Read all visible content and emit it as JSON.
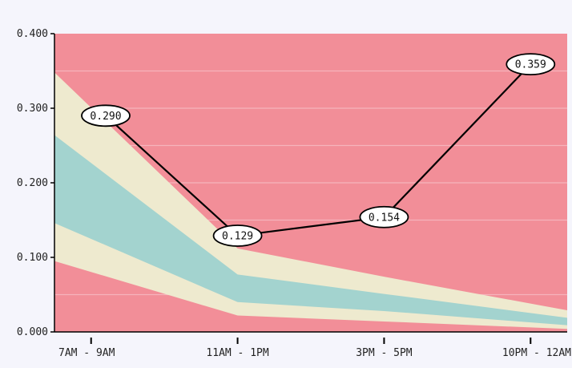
{
  "chart_data": {
    "type": "line",
    "title": "",
    "xlabel": "",
    "ylabel": "",
    "categories": [
      "7AM - 9AM",
      "11AM - 1PM",
      "3PM - 5PM",
      "10PM - 12AM"
    ],
    "x_positions": [
      0.1,
      1.0,
      2.0,
      3.0
    ],
    "ylim": [
      0,
      0.4
    ],
    "yticks": [
      0.0,
      0.1,
      0.2,
      0.3,
      0.4
    ],
    "ytick_labels": [
      "0.000",
      "0.100",
      "0.200",
      "0.300",
      "0.400"
    ],
    "gridlines": [
      0.05,
      0.15,
      0.2,
      0.25,
      0.3,
      0.35
    ],
    "series": [
      {
        "values": [
          0.29,
          0.129,
          0.154,
          0.359
        ],
        "labels": [
          "0.290",
          "0.129",
          "0.154",
          "0.359"
        ]
      }
    ],
    "bands": {
      "outer": {
        "x": [
          -0.25,
          1.0,
          2.0,
          3.25
        ],
        "lower": [
          0.095,
          0.022,
          0.014,
          0.004
        ],
        "upper": [
          0.348,
          0.112,
          0.074,
          0.029
        ]
      },
      "inner": {
        "x": [
          -0.25,
          1.0,
          2.0,
          3.25
        ],
        "lower": [
          0.146,
          0.04,
          0.028,
          0.009
        ],
        "upper": [
          0.264,
          0.077,
          0.051,
          0.019
        ]
      }
    },
    "colors": {
      "plot_bg": "#f28e98",
      "outer_band": "#eeeacf",
      "inner_band": "#a3d3cf",
      "line": "#000000",
      "gridline": "#f6b4bc",
      "label_bg": "#ffffff"
    }
  }
}
